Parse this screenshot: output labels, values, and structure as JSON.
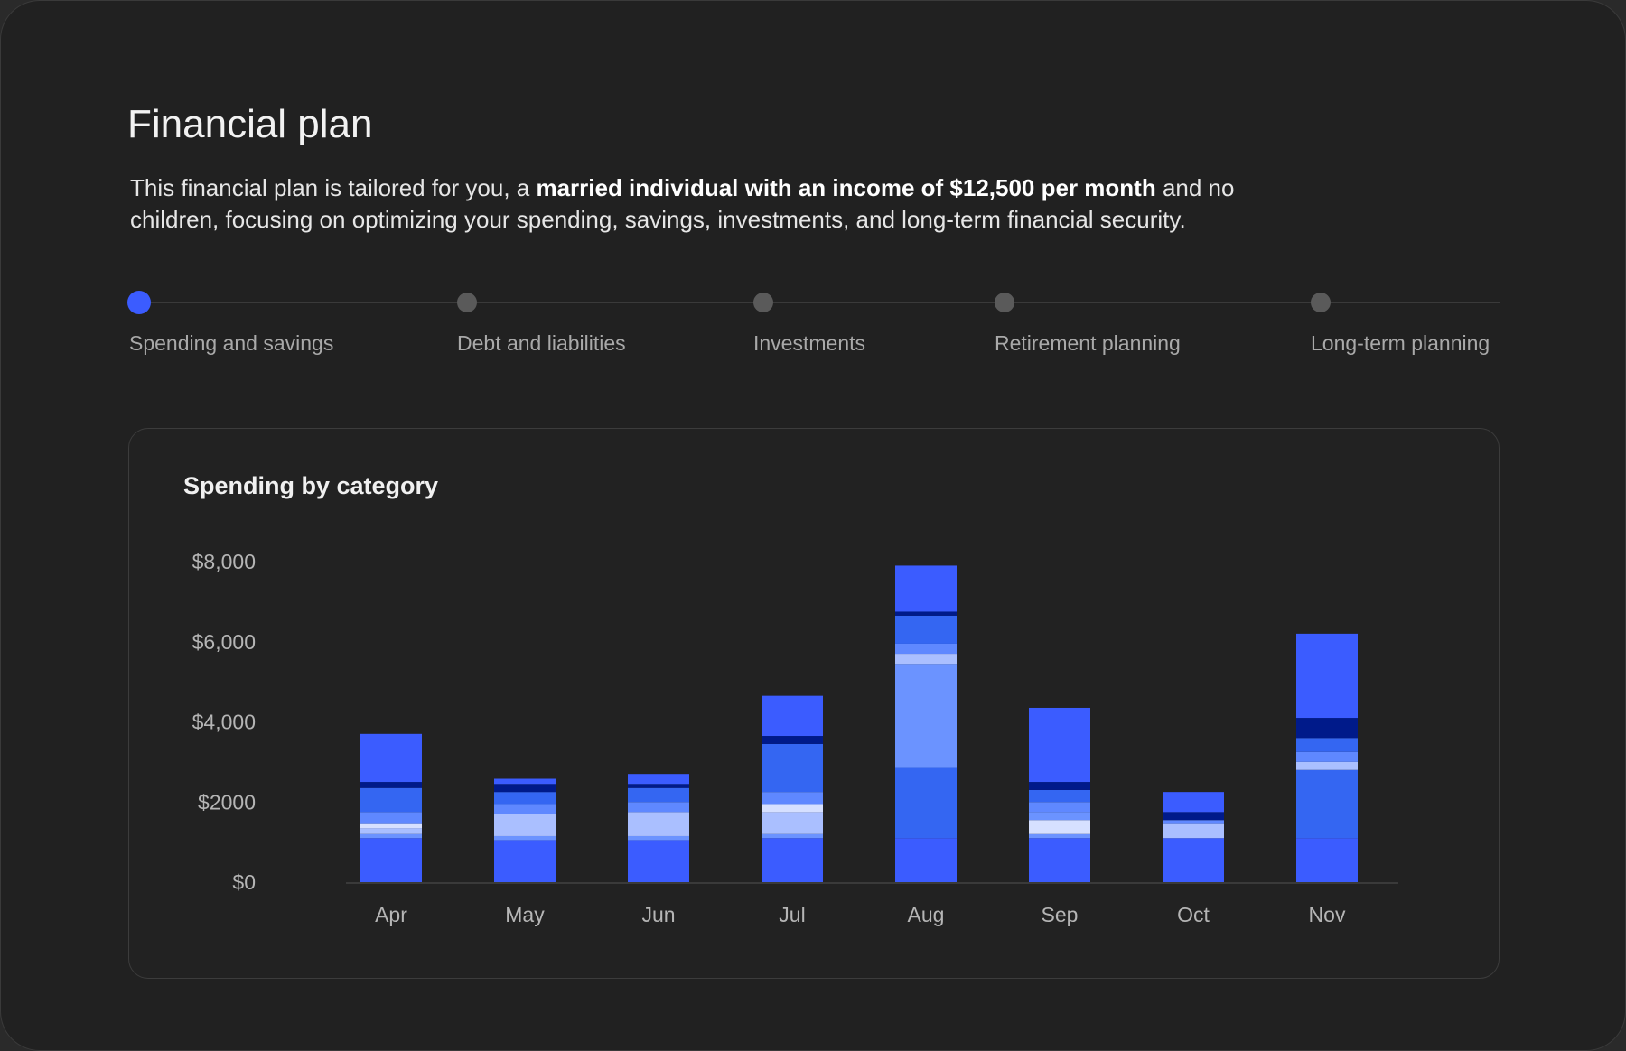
{
  "header": {
    "title": "Financial plan",
    "desc_pre": "This financial plan is tailored for you, a ",
    "desc_bold": "married individual with an income of $12,500 per month",
    "desc_post": " and no children, focusing on optimizing your spending, savings, investments, and long-term financial security."
  },
  "steps": [
    {
      "label": "Spending and savings",
      "active": true
    },
    {
      "label": "Debt and liabilities",
      "active": false
    },
    {
      "label": "Investments",
      "active": false
    },
    {
      "label": "Retirement planning",
      "active": false
    },
    {
      "label": "Long-term planning",
      "active": false
    }
  ],
  "colors": {
    "accent": "#3b5cff",
    "base": "#3b5cff",
    "light": "#6b93ff",
    "pale": "#aabfff",
    "vpale": "#d6e0ff",
    "light2": "#5f88ff",
    "mid": "#3466f2",
    "navy": "#001a8a"
  },
  "chart_data": {
    "type": "bar",
    "stacked": true,
    "title": "Spending by category",
    "xlabel": "",
    "ylabel": "",
    "ylim": [
      0,
      8000
    ],
    "yticks": [
      {
        "value": 0,
        "label": "$0"
      },
      {
        "value": 2000,
        "label": "$2000"
      },
      {
        "value": 4000,
        "label": "$4,000"
      },
      {
        "value": 6000,
        "label": "$6,000"
      },
      {
        "value": 8000,
        "label": "$8,000"
      }
    ],
    "categories": [
      "Apr",
      "May",
      "Jun",
      "Jul",
      "Aug",
      "Sep",
      "Oct",
      "Nov"
    ],
    "bars": [
      {
        "month": "Apr",
        "segments": [
          {
            "v": 1100,
            "c": "base"
          },
          {
            "v": 100,
            "c": "light"
          },
          {
            "v": 150,
            "c": "pale"
          },
          {
            "v": 100,
            "c": "vpale"
          },
          {
            "v": 300,
            "c": "light2"
          },
          {
            "v": 600,
            "c": "mid"
          },
          {
            "v": 150,
            "c": "navy"
          },
          {
            "v": 1200,
            "c": "base"
          }
        ]
      },
      {
        "month": "May",
        "segments": [
          {
            "v": 1050,
            "c": "base"
          },
          {
            "v": 100,
            "c": "light"
          },
          {
            "v": 550,
            "c": "pale"
          },
          {
            "v": 250,
            "c": "light2"
          },
          {
            "v": 300,
            "c": "mid"
          },
          {
            "v": 200,
            "c": "navy"
          },
          {
            "v": 130,
            "c": "base"
          }
        ]
      },
      {
        "month": "Jun",
        "segments": [
          {
            "v": 1050,
            "c": "base"
          },
          {
            "v": 100,
            "c": "light"
          },
          {
            "v": 600,
            "c": "pale"
          },
          {
            "v": 250,
            "c": "light2"
          },
          {
            "v": 350,
            "c": "mid"
          },
          {
            "v": 100,
            "c": "navy"
          },
          {
            "v": 250,
            "c": "base"
          }
        ]
      },
      {
        "month": "Jul",
        "segments": [
          {
            "v": 1100,
            "c": "base"
          },
          {
            "v": 100,
            "c": "light"
          },
          {
            "v": 550,
            "c": "pale"
          },
          {
            "v": 200,
            "c": "vpale"
          },
          {
            "v": 300,
            "c": "light2"
          },
          {
            "v": 1200,
            "c": "mid"
          },
          {
            "v": 200,
            "c": "navy"
          },
          {
            "v": 1000,
            "c": "base"
          }
        ]
      },
      {
        "month": "Aug",
        "segments": [
          {
            "v": 1100,
            "c": "base"
          },
          {
            "v": 1750,
            "c": "mid"
          },
          {
            "v": 2600,
            "c": "light"
          },
          {
            "v": 250,
            "c": "pale"
          },
          {
            "v": 250,
            "c": "light2"
          },
          {
            "v": 700,
            "c": "mid"
          },
          {
            "v": 100,
            "c": "navy"
          },
          {
            "v": 1150,
            "c": "base"
          }
        ]
      },
      {
        "month": "Sep",
        "segments": [
          {
            "v": 1100,
            "c": "base"
          },
          {
            "v": 100,
            "c": "light"
          },
          {
            "v": 350,
            "c": "vpale"
          },
          {
            "v": 200,
            "c": "light"
          },
          {
            "v": 250,
            "c": "light2"
          },
          {
            "v": 300,
            "c": "mid"
          },
          {
            "v": 200,
            "c": "navy"
          },
          {
            "v": 1850,
            "c": "base"
          }
        ]
      },
      {
        "month": "Oct",
        "segments": [
          {
            "v": 1100,
            "c": "base"
          },
          {
            "v": 350,
            "c": "pale"
          },
          {
            "v": 100,
            "c": "light2"
          },
          {
            "v": 200,
            "c": "navy"
          },
          {
            "v": 500,
            "c": "base"
          }
        ]
      },
      {
        "month": "Nov",
        "segments": [
          {
            "v": 1100,
            "c": "base"
          },
          {
            "v": 1700,
            "c": "mid"
          },
          {
            "v": 200,
            "c": "pale"
          },
          {
            "v": 250,
            "c": "light2"
          },
          {
            "v": 350,
            "c": "mid"
          },
          {
            "v": 500,
            "c": "navy"
          },
          {
            "v": 2100,
            "c": "base"
          }
        ]
      }
    ]
  }
}
